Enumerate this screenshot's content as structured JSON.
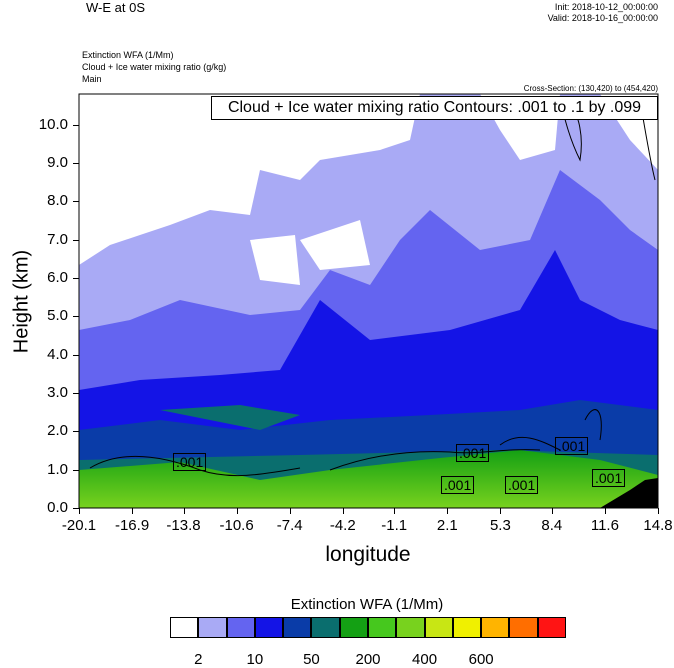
{
  "header": {
    "title": "W-E at 0S",
    "init": "Init: 2018-10-12_00:00:00",
    "valid": "Valid: 2018-10-16_00:00:00",
    "field1": "Extinction WFA   (1/Mm)",
    "field2": "Cloud + Ice water mixing ratio   (g/kg)",
    "field3": "Main",
    "cross_section": "Cross-Section: (130,420) to (454,420)",
    "contour_info": "Cloud + Ice water mixing ratio Contours: .001 to .1 by .099"
  },
  "chart_data": {
    "type": "heatmap",
    "xlabel": "longitude",
    "ylabel": "Height (km)",
    "x_ticks": [
      "-20.1",
      "-16.9",
      "-13.8",
      "-10.6",
      "-7.4",
      "-4.2",
      "-1.1",
      "2.1",
      "5.3",
      "8.4",
      "11.6",
      "14.8"
    ],
    "y_ticks": [
      "0.0",
      "1.0",
      "2.0",
      "3.0",
      "4.0",
      "5.0",
      "6.0",
      "7.0",
      "8.0",
      "9.0",
      "10.0"
    ],
    "xlim": [
      -20.1,
      14.8
    ],
    "ylim": [
      0,
      10.8
    ],
    "contour_labels": [
      {
        "text": ".001",
        "x": -13.3,
        "y": 1.15
      },
      {
        "text": ".001",
        "x": 3.9,
        "y": 1.4
      },
      {
        "text": ".001",
        "x": 2.1,
        "y": 0.6
      },
      {
        "text": ".001",
        "x": 6.9,
        "y": 0.6
      },
      {
        "text": ".001",
        "x": 9.4,
        "y": 1.6
      },
      {
        "text": ".001",
        "x": 12.5,
        "y": 0.8
      }
    ],
    "colorbar": {
      "title": "Extinction WFA  (1/Mm)",
      "colors": [
        "#ffffff",
        "#a9aaf5",
        "#6464f0",
        "#1414e6",
        "#0a3ca8",
        "#0a6e6e",
        "#14a014",
        "#46c81e",
        "#78d21e",
        "#c8e614",
        "#f0f000",
        "#ffb400",
        "#ff6e00",
        "#ff1414"
      ],
      "labels": [
        "2",
        "10",
        "50",
        "200",
        "400",
        "600"
      ],
      "label_positions": [
        1,
        3,
        5,
        7,
        9,
        11
      ]
    }
  }
}
